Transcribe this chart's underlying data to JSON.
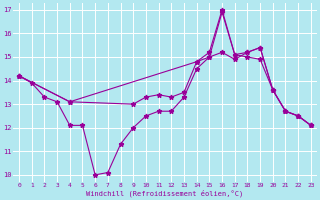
{
  "background_color": "#b3e8f0",
  "grid_color": "#ffffff",
  "line_color": "#990099",
  "xlabel": "Windchill (Refroidissement éolien,°C)",
  "xlim": [
    -0.5,
    23.5
  ],
  "ylim": [
    9.7,
    17.3
  ],
  "yticks": [
    10,
    11,
    12,
    13,
    14,
    15,
    16,
    17
  ],
  "xticks": [
    0,
    1,
    2,
    3,
    4,
    5,
    6,
    7,
    8,
    9,
    10,
    11,
    12,
    13,
    14,
    15,
    16,
    17,
    18,
    19,
    20,
    21,
    22,
    23
  ],
  "line1_jagged": {
    "x": [
      0,
      1,
      2,
      3,
      4,
      5,
      6,
      7,
      8,
      9,
      10,
      11,
      12,
      13,
      14,
      15,
      16,
      17,
      18,
      19,
      20,
      21,
      22,
      23
    ],
    "y": [
      14.2,
      13.9,
      13.3,
      13.1,
      12.1,
      12.1,
      10.0,
      10.1,
      11.3,
      12.0,
      12.5,
      12.7,
      12.7,
      13.3,
      14.5,
      15.0,
      16.9,
      15.1,
      15.0,
      14.9,
      13.6,
      12.7,
      12.5,
      12.1
    ]
  },
  "line2_upper": {
    "x": [
      0,
      4,
      14,
      15,
      16,
      17,
      18,
      19,
      20,
      21,
      22,
      23
    ],
    "y": [
      14.2,
      13.1,
      14.8,
      15.2,
      17.0,
      15.1,
      15.2,
      15.4,
      13.6,
      12.7,
      12.5,
      12.1
    ]
  },
  "line3_flat": {
    "x": [
      0,
      4,
      9,
      10,
      11,
      12,
      13,
      14,
      15,
      16,
      17,
      18,
      19,
      20,
      21,
      22,
      23
    ],
    "y": [
      14.2,
      13.1,
      13.0,
      13.3,
      13.4,
      13.3,
      13.5,
      14.8,
      15.0,
      15.2,
      14.9,
      15.2,
      15.4,
      13.6,
      12.7,
      12.5,
      12.1
    ]
  }
}
